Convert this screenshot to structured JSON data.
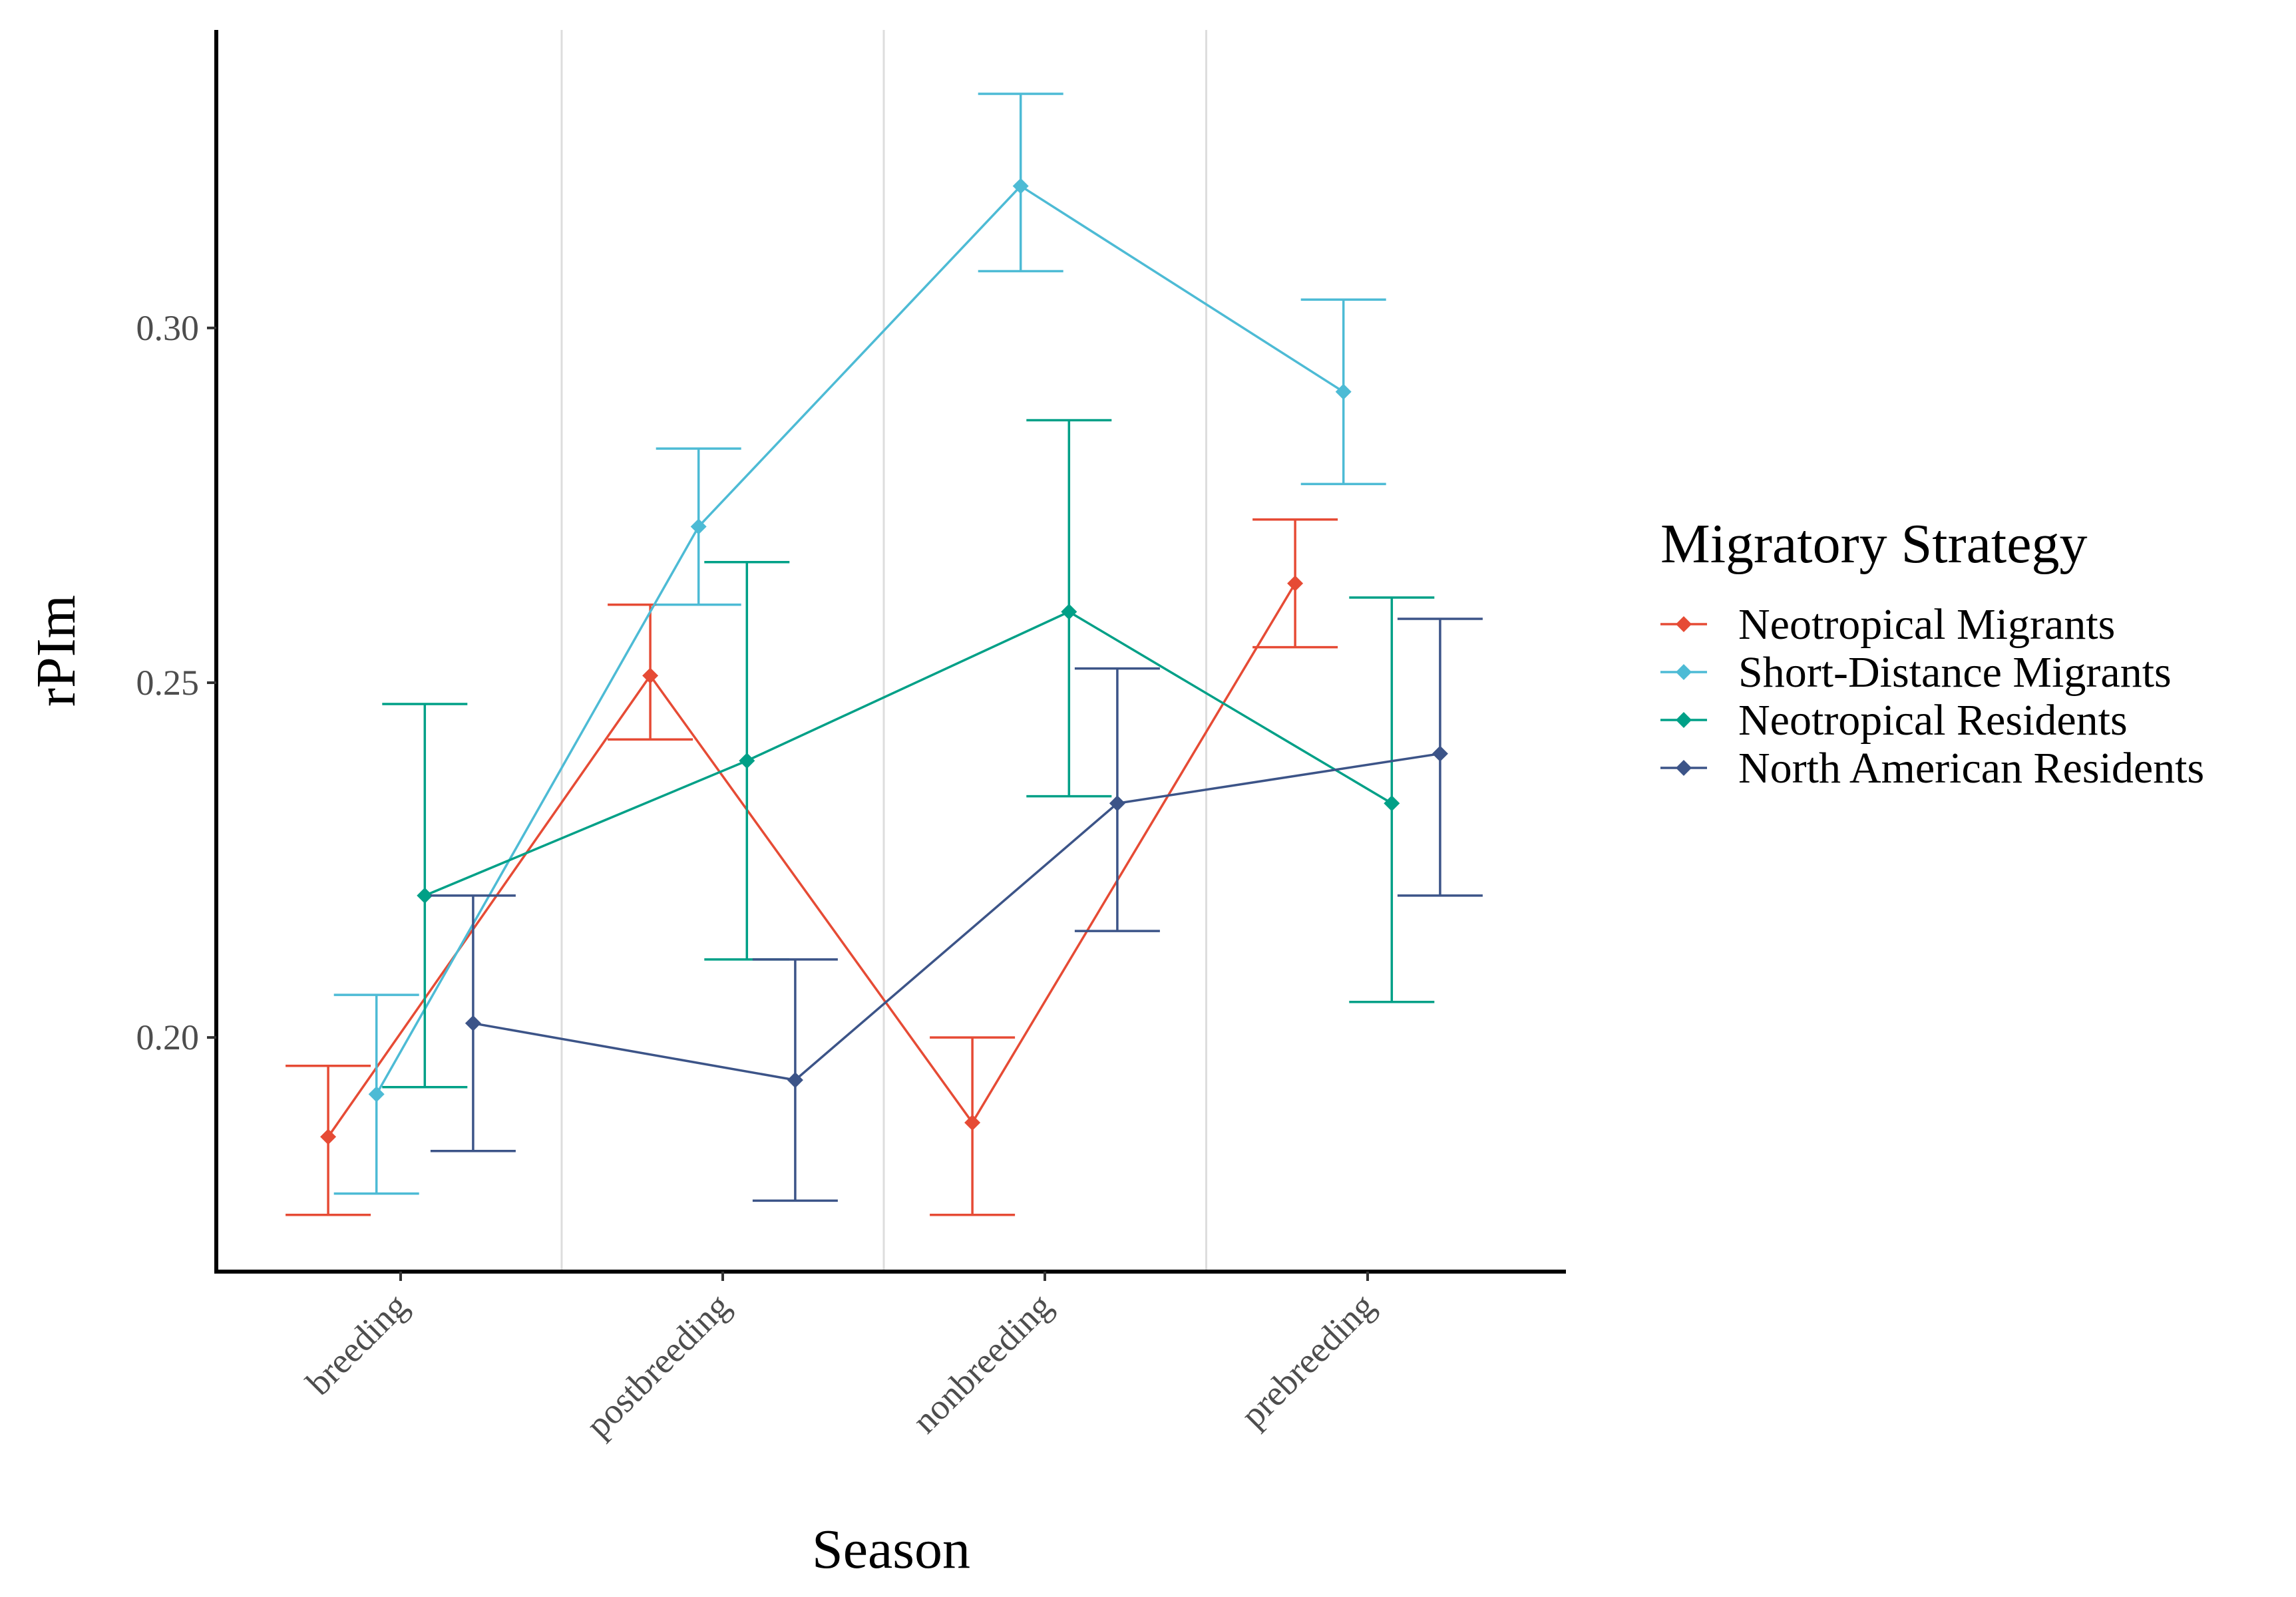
{
  "chart_data": {
    "type": "line",
    "xlabel": "Season",
    "ylabel": "rPIm",
    "categories": [
      "breeding",
      "postbreeding",
      "nonbreeding",
      "prebreeding"
    ],
    "ylim": [
      0.167,
      0.342
    ],
    "yticks": [
      0.2,
      0.25,
      0.3
    ],
    "ytick_labels": [
      "0.20",
      "0.25",
      "0.30"
    ],
    "grid": "vertical separators between seasons",
    "legend": {
      "title": "Migratory Strategy",
      "position": "right"
    },
    "series": [
      {
        "name": "Neotropical Migrants",
        "color": "#E64B35",
        "values": [
          0.186,
          0.251,
          0.188,
          0.264
        ],
        "lower": [
          0.175,
          0.242,
          0.175,
          0.255
        ],
        "upper": [
          0.196,
          0.261,
          0.2,
          0.273
        ]
      },
      {
        "name": "Short-Distance Migrants",
        "color": "#4DBBD5",
        "values": [
          0.192,
          0.272,
          0.32,
          0.291
        ],
        "lower": [
          0.178,
          0.261,
          0.308,
          0.278
        ],
        "upper": [
          0.206,
          0.283,
          0.333,
          0.304
        ]
      },
      {
        "name": "Neotropical Residents",
        "color": "#00A087",
        "values": [
          0.22,
          0.239,
          0.26,
          0.233
        ],
        "lower": [
          0.193,
          0.211,
          0.234,
          0.205
        ],
        "upper": [
          0.247,
          0.267,
          0.287,
          0.262
        ]
      },
      {
        "name": "North American Residents",
        "color": "#3C5488",
        "values": [
          0.202,
          0.194,
          0.233,
          0.24
        ],
        "lower": [
          0.184,
          0.177,
          0.215,
          0.22
        ],
        "upper": [
          0.22,
          0.211,
          0.252,
          0.259
        ]
      }
    ]
  }
}
